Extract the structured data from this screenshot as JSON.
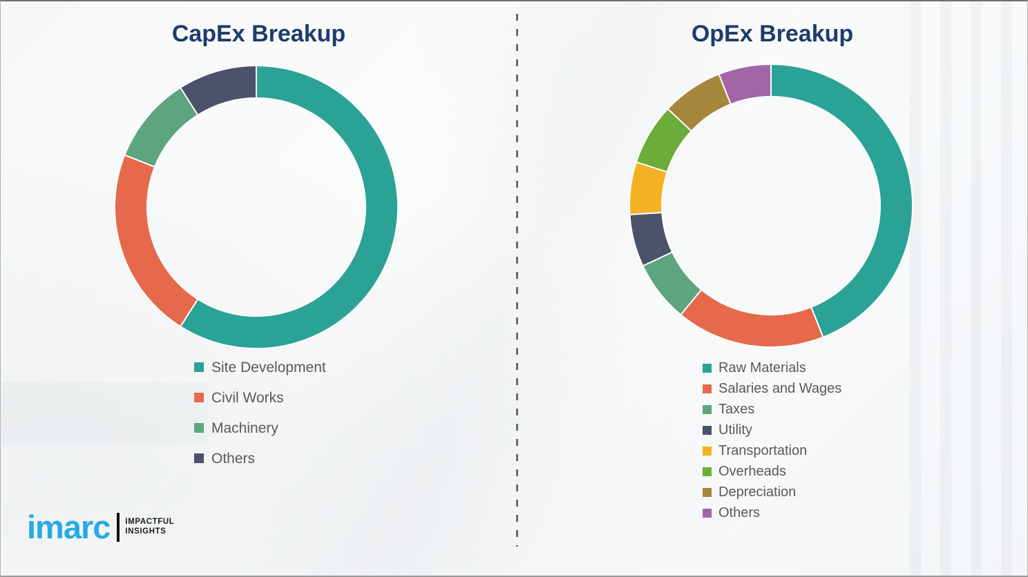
{
  "chart_data": [
    {
      "type": "pie",
      "subtype": "donut",
      "title": "CapEx Breakup",
      "labels": [
        "Site Development",
        "Civil Works",
        "Machinery",
        "Others"
      ],
      "values": [
        59,
        22,
        10,
        9
      ],
      "unit": "percent-estimated",
      "colors": [
        "#2AA396",
        "#E5694A",
        "#5DA57E",
        "#4C5269"
      ],
      "start_angle_deg": 0,
      "direction": "clockwise",
      "inner_radius_ratio": 0.77,
      "legend_position": "below-left",
      "data_labels": "none"
    },
    {
      "type": "pie",
      "subtype": "donut",
      "title": "OpEx Breakup",
      "labels": [
        "Raw Materials",
        "Salaries and Wages",
        "Taxes",
        "Utility",
        "Transportation",
        "Overheads",
        "Depreciation",
        "Others"
      ],
      "values": [
        44,
        17,
        7,
        6,
        6,
        7,
        7,
        6
      ],
      "unit": "percent-estimated",
      "colors": [
        "#2AA396",
        "#E5694A",
        "#5DA57E",
        "#4C5269",
        "#F4B123",
        "#6CAC38",
        "#A5873C",
        "#A266A8"
      ],
      "start_angle_deg": 0,
      "direction": "clockwise",
      "inner_radius_ratio": 0.77,
      "legend_position": "below-left",
      "data_labels": "none"
    }
  ],
  "branding": {
    "brand": "imarc",
    "tagline": [
      "IMPACTFUL",
      "INSIGHTS"
    ],
    "brand_color": "#29ABE2"
  },
  "styles": {
    "title_color": "#1F3B6C",
    "legend_text_color": "#595959",
    "divider_style": "vertical-dashed",
    "divider_color": "#6a6a6a",
    "segment_gap_color": "#ffffff"
  }
}
